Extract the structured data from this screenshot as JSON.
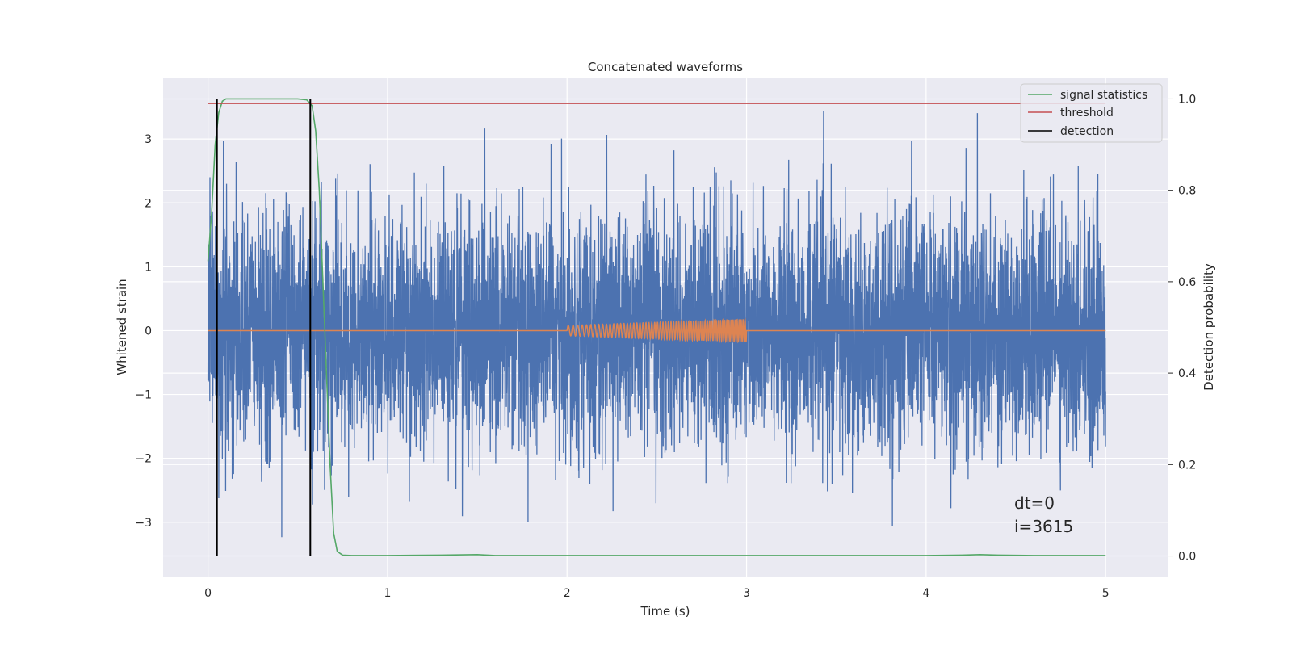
{
  "chart_data": {
    "type": "line",
    "title": "Concatenated waveforms",
    "xlabel": "Time (s)",
    "ylabel_left": "Whitened strain",
    "ylabel_right": "Detection probability",
    "xlim": [
      -0.25,
      5.35
    ],
    "ylim_left": [
      -3.85,
      3.95
    ],
    "ylim_right": [
      -0.045,
      1.045
    ],
    "grid": true,
    "legend_position": "top-right",
    "x_ticks": [
      "0",
      "1",
      "2",
      "3",
      "4",
      "5"
    ],
    "x_tick_values": [
      0,
      1,
      2,
      3,
      4,
      5
    ],
    "y_left_ticks": [
      "−3",
      "−2",
      "−1",
      "0",
      "1",
      "2",
      "3"
    ],
    "y_left_tick_values": [
      -3,
      -2,
      -1,
      0,
      1,
      2,
      3
    ],
    "y_right_ticks": [
      "0.0",
      "0.2",
      "0.4",
      "0.6",
      "0.8",
      "1.0"
    ],
    "y_right_tick_values": [
      0.0,
      0.2,
      0.4,
      0.6,
      0.8,
      1.0
    ],
    "series": [
      {
        "name": "",
        "axis": "left",
        "color": "#4c72b0",
        "description_kind": "noise",
        "x_range": [
          0,
          5
        ],
        "amplitude_std": 0.9,
        "peak_range": [
          -3.5,
          3.6
        ]
      },
      {
        "name": "",
        "axis": "left",
        "color": "#dd8452",
        "kind": "chirp",
        "x_range": [
          0,
          5
        ],
        "chirp_start": 2.0,
        "chirp_end": 3.0,
        "amplitude_start": 0.08,
        "amplitude_end": 0.18
      },
      {
        "name": "signal statistics",
        "axis": "right",
        "color": "#55a868",
        "x": [
          0.0,
          0.02,
          0.04,
          0.06,
          0.08,
          0.1,
          0.2,
          0.3,
          0.4,
          0.5,
          0.55,
          0.58,
          0.6,
          0.62,
          0.64,
          0.66,
          0.68,
          0.7,
          0.72,
          0.75,
          0.8,
          1.0,
          1.3,
          1.5,
          1.6,
          2.0,
          3.0,
          4.0,
          4.2,
          4.3,
          4.4,
          4.6,
          5.0
        ],
        "y": [
          0.645,
          0.75,
          0.9,
          0.97,
          0.995,
          1.0,
          1.0,
          1.0,
          1.0,
          1.0,
          0.998,
          0.985,
          0.93,
          0.8,
          0.6,
          0.4,
          0.2,
          0.05,
          0.01,
          0.002,
          0.001,
          0.001,
          0.002,
          0.003,
          0.001,
          0.001,
          0.001,
          0.001,
          0.002,
          0.003,
          0.002,
          0.001,
          0.001
        ]
      },
      {
        "name": "threshold",
        "axis": "right",
        "color": "#c44e52",
        "x": [
          0,
          5
        ],
        "y": [
          0.99,
          0.99
        ]
      },
      {
        "name": "detection",
        "axis": "right",
        "color": "#000000",
        "kind": "vlines",
        "x": [
          0.05,
          0.57
        ],
        "y_range": [
          0.0,
          1.0
        ]
      }
    ],
    "annotations": [
      "dt=0",
      "i=3615"
    ]
  }
}
